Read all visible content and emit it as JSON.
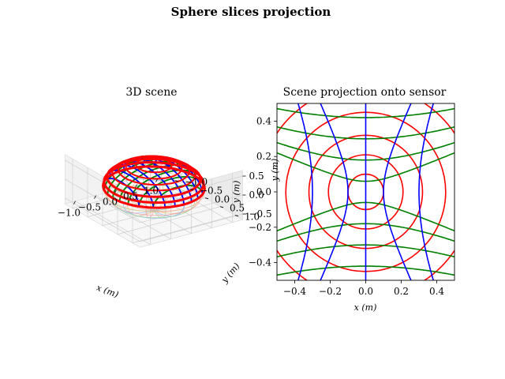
{
  "figure": {
    "suptitle": "Sphere slices projection"
  },
  "chart_data": [
    {
      "type": "scatter",
      "subtype": "3d-wireframe",
      "title": "3D scene",
      "xlabel": "x (m)",
      "ylabel": "y (m)",
      "zlabel": "y (m)",
      "xlim": [
        -1.25,
        1.25
      ],
      "ylim": [
        -1.25,
        1.25
      ],
      "zlim": [
        -0.65,
        0.65
      ],
      "x_ticks": [
        "−1.0",
        "−0.5",
        "0.0",
        "0.5",
        "1.0"
      ],
      "y_ticks": [
        "−1.0",
        "−0.5",
        "0.0",
        "0.5",
        "1.0"
      ],
      "z_ticks": [
        "−0.5",
        "0.0",
        "0.5"
      ],
      "sphere_radius": 1.0,
      "series": [
        {
          "color": "#ff0000",
          "family": "horizontal circles (z = const)",
          "levels": [
            0.35,
            0.55,
            0.7,
            0.82,
            0.92,
            0.98,
            1.0
          ]
        },
        {
          "color": "#008000",
          "family": "vertical circles (y = const)",
          "levels": [
            -0.8,
            -0.6,
            -0.4,
            -0.2,
            0.0,
            0.2,
            0.4,
            0.6,
            0.8
          ]
        },
        {
          "color": "#0000ff",
          "family": "vertical circles (x = const)",
          "levels": [
            -0.8,
            -0.6,
            -0.4,
            -0.2,
            0.0,
            0.2,
            0.4,
            0.6,
            0.8
          ]
        }
      ]
    },
    {
      "type": "line",
      "title": "Scene projection onto sensor",
      "xlabel": "x (m)",
      "ylabel": "y (m)",
      "xlim": [
        -0.5,
        0.5
      ],
      "ylim": [
        -0.5,
        0.5
      ],
      "x_ticks": [
        "−0.4",
        "−0.2",
        "0.0",
        "0.2",
        "0.4"
      ],
      "y_ticks": [
        "−0.4",
        "−0.2",
        "0.0",
        "0.2",
        "0.4"
      ],
      "grid": false,
      "series": [
        {
          "color": "#ff0000",
          "shape": "concentric circles",
          "radii": [
            0.1,
            0.21,
            0.32,
            0.45,
            0.6,
            0.78
          ]
        },
        {
          "color": "#008000",
          "shape": "horizontal hyperbola-like curves",
          "center_offsets_y": [
            -0.85,
            -0.68,
            -0.55,
            -0.42,
            -0.3,
            -0.18,
            -0.06,
            0.06,
            0.18,
            0.3,
            0.42,
            0.55,
            0.68,
            0.85
          ]
        },
        {
          "color": "#0000ff",
          "shape": "vertical hyperbola-like curves",
          "center_offsets_x": [
            -0.85,
            -0.6,
            -0.3,
            -0.1,
            0.0,
            0.1,
            0.3,
            0.6,
            0.85
          ]
        }
      ]
    }
  ]
}
